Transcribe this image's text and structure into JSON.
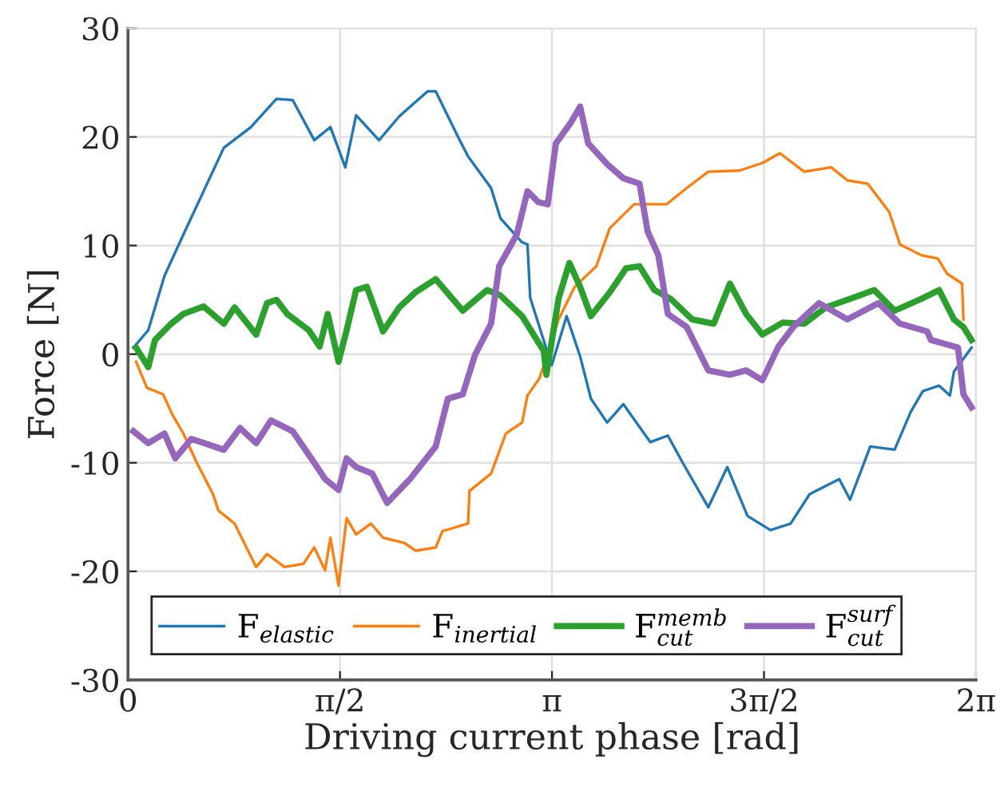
{
  "chart_data": {
    "type": "line",
    "xlabel": "Driving current phase [rad]",
    "ylabel": "Force [N]",
    "xlim": [
      0,
      6.2832
    ],
    "xticks": [
      0,
      {
        "value": 1.5708,
        "label": "π/2"
      },
      {
        "value": 3.1416,
        "label": "π"
      },
      {
        "value": 4.7124,
        "label": "3π/2"
      },
      {
        "value": 6.2832,
        "label": "2π"
      }
    ],
    "ylim": [
      -30,
      30
    ],
    "yticks": [
      -30,
      -20,
      -10,
      0,
      10,
      20,
      30
    ],
    "grid": true,
    "legend": "bottom",
    "marker": "none",
    "line_style": "solid",
    "series": [
      {
        "name": "F$_{elastic}$",
        "color": "#1f77b4",
        "x": [
          0.04,
          0.15,
          0.27,
          0.41,
          0.56,
          0.71,
          0.91,
          1.1,
          1.22,
          1.38,
          1.5,
          1.61,
          1.69,
          1.86,
          2.01,
          2.22,
          2.28,
          2.45,
          2.52,
          2.69,
          2.76,
          2.92,
          2.96,
          2.98,
          3.1,
          3.14,
          3.25,
          3.35,
          3.43,
          3.55,
          3.67,
          3.87,
          4.0,
          4.11,
          4.3,
          4.44,
          4.59,
          4.76,
          4.91,
          5.05,
          5.27,
          5.35,
          5.5,
          5.68,
          5.8,
          5.89,
          6.01,
          6.09,
          6.12,
          6.25
        ],
        "values": [
          0.6,
          2.2,
          7.2,
          11,
          15,
          19,
          20.9,
          23.5,
          23.4,
          19.7,
          20.9,
          17.2,
          22,
          19.7,
          21.9,
          24.2,
          24.2,
          19.9,
          18.2,
          15.3,
          12.5,
          10.3,
          10.1,
          5.2,
          0.5,
          -1,
          3.5,
          -0.2,
          -4.1,
          -6.3,
          -4.6,
          -8.1,
          -7.5,
          -10,
          -14.1,
          -10.4,
          -14.9,
          -16.2,
          -15.6,
          -12.9,
          -11.5,
          -13.4,
          -8.5,
          -8.8,
          -5.3,
          -3.4,
          -2.9,
          -3.8,
          -1.6,
          0.6
        ]
      },
      {
        "name": "F$_{inertial}$",
        "color": "#ff7f0e",
        "x": [
          0.06,
          0.14,
          0.26,
          0.33,
          0.41,
          0.51,
          0.63,
          0.67,
          0.79,
          0.95,
          1.03,
          1.16,
          1.3,
          1.38,
          1.46,
          1.5,
          1.56,
          1.62,
          1.69,
          1.8,
          1.89,
          2.05,
          2.13,
          2.28,
          2.33,
          2.52,
          2.53,
          2.69,
          2.8,
          2.92,
          2.96,
          3.05,
          3.19,
          3.31,
          3.47,
          3.57,
          3.75,
          3.99,
          4.14,
          4.3,
          4.53,
          4.7,
          4.83,
          5.01,
          5.21,
          5.33,
          5.48,
          5.64,
          5.72,
          5.88,
          6.0,
          6.07,
          6.18,
          6.19
        ],
        "values": [
          -0.7,
          -3.1,
          -3.7,
          -5.6,
          -7.3,
          -10,
          -12.9,
          -14.4,
          -15.6,
          -19.6,
          -18.4,
          -19.6,
          -19.3,
          -17.8,
          -19.9,
          -16.9,
          -21.3,
          -15.1,
          -16.6,
          -15.6,
          -16.9,
          -17.4,
          -18.1,
          -17.8,
          -16.3,
          -15.6,
          -12.6,
          -11,
          -7.3,
          -6.3,
          -3.8,
          -2.2,
          3.2,
          6.2,
          8.1,
          11.6,
          13.8,
          13.8,
          15.3,
          16.8,
          16.9,
          17.6,
          18.5,
          16.8,
          17.2,
          16,
          15.7,
          13.1,
          10.1,
          9.1,
          8.8,
          7.4,
          6.5,
          3.2
        ]
      },
      {
        "name": "F$^{memb}$$_{cut}$",
        "color": "#2ca02c",
        "x": [
          0.06,
          0.15,
          0.2,
          0.32,
          0.41,
          0.56,
          0.71,
          0.79,
          0.95,
          1.03,
          1.1,
          1.18,
          1.34,
          1.42,
          1.48,
          1.56,
          1.62,
          1.69,
          1.77,
          1.89,
          2.01,
          2.13,
          2.28,
          2.48,
          2.66,
          2.76,
          2.92,
          3.08,
          3.1,
          3.19,
          3.27,
          3.35,
          3.43,
          3.57,
          3.69,
          3.79,
          3.9,
          4.02,
          4.18,
          4.34,
          4.46,
          4.58,
          4.7,
          4.85,
          5.01,
          5.17,
          5.33,
          5.53,
          5.68,
          5.88,
          6.01,
          6.12,
          6.19,
          6.25
        ],
        "values": [
          0.6,
          -1.2,
          1.3,
          2.8,
          3.7,
          4.4,
          2.8,
          4.3,
          1.8,
          4.7,
          5,
          3.7,
          2.2,
          0.7,
          3.7,
          -0.7,
          2.2,
          5.9,
          6.2,
          2.1,
          4.3,
          5.7,
          6.9,
          4,
          5.9,
          5.4,
          3.5,
          0.3,
          -1.9,
          5.1,
          8.4,
          6.2,
          3.5,
          5.7,
          7.9,
          8.1,
          5.9,
          5.1,
          3.2,
          2.8,
          6.5,
          3.7,
          1.8,
          2.9,
          2.8,
          4.3,
          5,
          5.9,
          4,
          5.1,
          5.9,
          3.2,
          2.5,
          1.3
        ]
      },
      {
        "name": "F$^{surf}$$_{cut}$",
        "color": "#9467bd",
        "x": [
          0.04,
          0.15,
          0.27,
          0.35,
          0.47,
          0.71,
          0.83,
          0.95,
          1.06,
          1.22,
          1.38,
          1.46,
          1.56,
          1.62,
          1.69,
          1.81,
          1.92,
          2.09,
          2.21,
          2.28,
          2.37,
          2.48,
          2.57,
          2.69,
          2.75,
          2.88,
          2.96,
          3.04,
          3.11,
          3.17,
          3.28,
          3.35,
          3.41,
          3.55,
          3.67,
          3.79,
          3.85,
          3.93,
          4.0,
          4.14,
          4.3,
          4.46,
          4.58,
          4.7,
          4.82,
          4.93,
          5.12,
          5.33,
          5.56,
          5.72,
          5.92,
          5.95,
          6.15,
          6.19,
          6.25
        ],
        "values": [
          -7.1,
          -8.2,
          -7.3,
          -9.6,
          -7.8,
          -8.8,
          -6.8,
          -8.2,
          -6.1,
          -7.1,
          -10,
          -11.5,
          -12.5,
          -9.6,
          -10.4,
          -11,
          -13.7,
          -11.5,
          -9.6,
          -8.5,
          -4.1,
          -3.7,
          -0.1,
          2.8,
          8.1,
          11,
          15,
          14,
          13.8,
          19.4,
          21.3,
          22.8,
          19.4,
          17.5,
          16.2,
          15.7,
          11.3,
          9.1,
          3.7,
          2.5,
          -1.5,
          -1.9,
          -1.5,
          -2.4,
          0.7,
          2.5,
          4.7,
          3.2,
          4.7,
          2.8,
          2.1,
          1.3,
          0.6,
          -3.7,
          -4.9
        ]
      }
    ]
  }
}
